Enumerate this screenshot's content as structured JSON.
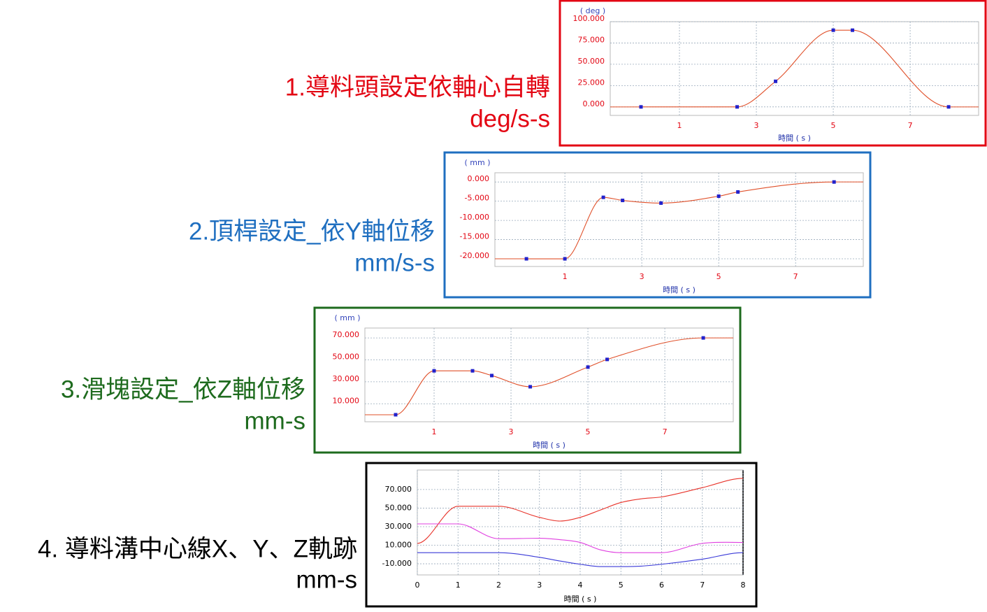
{
  "chart_data": [
    {
      "type": "line",
      "title": "1.導料頭設定依軸心自轉",
      "subtitle": "deg/s-s",
      "frame_color": "#e30613",
      "tick_color": "#e30613",
      "y_unit_label": "( deg )",
      "x_label": "時間 ( s )",
      "markers": true,
      "grid": true,
      "x": [
        0,
        2.5,
        3.5,
        5,
        5.5,
        8
      ],
      "series": [
        {
          "color": "#e0502a",
          "values": [
            0,
            0,
            30,
            90,
            90,
            0
          ]
        }
      ],
      "xlim": [
        -0.8,
        8.78
      ],
      "ylim": [
        -10,
        100
      ],
      "xticks": [
        1,
        3,
        5,
        7
      ],
      "yticks": [
        {
          "value": 0,
          "label": "0.000"
        },
        {
          "value": 25,
          "label": "25.000"
        },
        {
          "value": 50,
          "label": "50.000"
        },
        {
          "value": 75,
          "label": "75.000"
        },
        {
          "value": 100,
          "label": "100.000"
        }
      ]
    },
    {
      "type": "line",
      "title": "2.頂桿設定_依Y軸位移",
      "subtitle": "mm/s-s",
      "frame_color": "#1f6fc0",
      "tick_color": "#e30613",
      "y_unit_label": "( mm )",
      "x_label": "時間 ( s )",
      "markers": true,
      "grid": true,
      "x": [
        0,
        1,
        2,
        2.5,
        3.5,
        5,
        5.5,
        8
      ],
      "series": [
        {
          "color": "#e0502a",
          "values": [
            -20,
            -20,
            -4,
            -4.8,
            -5.5,
            -3.7,
            -2.6,
            0
          ]
        }
      ],
      "xlim": [
        -0.82,
        8.76
      ],
      "ylim": [
        -22,
        2.4
      ],
      "xticks": [
        1,
        3,
        5,
        7
      ],
      "yticks": [
        {
          "value": -20,
          "label": "-20.000"
        },
        {
          "value": -15,
          "label": "-15.000"
        },
        {
          "value": -10,
          "label": "-10.000"
        },
        {
          "value": -5,
          "label": "-5.000"
        },
        {
          "value": 0,
          "label": "0.000"
        }
      ]
    },
    {
      "type": "line",
      "title": "3.滑塊設定_依Z軸位移",
      "subtitle": "mm-s",
      "frame_color": "#1e6b1e",
      "tick_color": "#e30613",
      "y_unit_label": "( mm )",
      "x_label": "時間 ( s )",
      "markers": true,
      "grid": true,
      "x": [
        0,
        1,
        2,
        2.5,
        3.5,
        5,
        5.5,
        8
      ],
      "series": [
        {
          "color": "#e0502a",
          "values": [
            0,
            40,
            40,
            35.7,
            25.5,
            43.4,
            50.4,
            70
          ]
        }
      ],
      "xlim": [
        -0.8,
        8.78
      ],
      "ylim": [
        -6.4,
        79
      ],
      "xticks": [
        1,
        3,
        5,
        7
      ],
      "yticks": [
        {
          "value": 10,
          "label": "10.000"
        },
        {
          "value": 30,
          "label": "30.000"
        },
        {
          "value": 50,
          "label": "50.000"
        },
        {
          "value": 70,
          "label": "70.000"
        }
      ]
    },
    {
      "type": "line",
      "title": "4. 導料溝中心線X、Y、Z軌跡",
      "subtitle": "mm-s",
      "frame_color": "#000000",
      "tick_color": "#000000",
      "x_label": "時間 ( s )",
      "markers": false,
      "grid": true,
      "x": [
        0,
        1,
        2,
        3,
        3.5,
        4,
        4.5,
        5,
        5.5,
        6,
        7,
        8
      ],
      "series": [
        {
          "color": "#e8332a",
          "values": [
            12,
            52,
            52,
            40,
            36,
            40,
            48,
            56,
            60,
            62,
            72,
            82
          ]
        },
        {
          "color": "#e040e0",
          "values": [
            33,
            33,
            17,
            17.5,
            16,
            13,
            5,
            2,
            2,
            2,
            12,
            13
          ]
        },
        {
          "color": "#3a3ad8",
          "values": [
            2,
            2,
            2,
            -3,
            -7,
            -10.5,
            -13,
            -13,
            -12.5,
            -10.5,
            -5,
            2
          ]
        }
      ],
      "xlim": [
        0,
        8
      ],
      "ylim": [
        -22,
        91
      ],
      "xticks": [
        0,
        1,
        2,
        3,
        4,
        5,
        6,
        7,
        8
      ],
      "yticks": [
        {
          "value": -10,
          "label": "-10.000"
        },
        {
          "value": 10,
          "label": "10.000"
        },
        {
          "value": 30,
          "label": "30.000"
        },
        {
          "value": 50,
          "label": "50.000"
        },
        {
          "value": 70,
          "label": "70.000"
        }
      ]
    }
  ]
}
